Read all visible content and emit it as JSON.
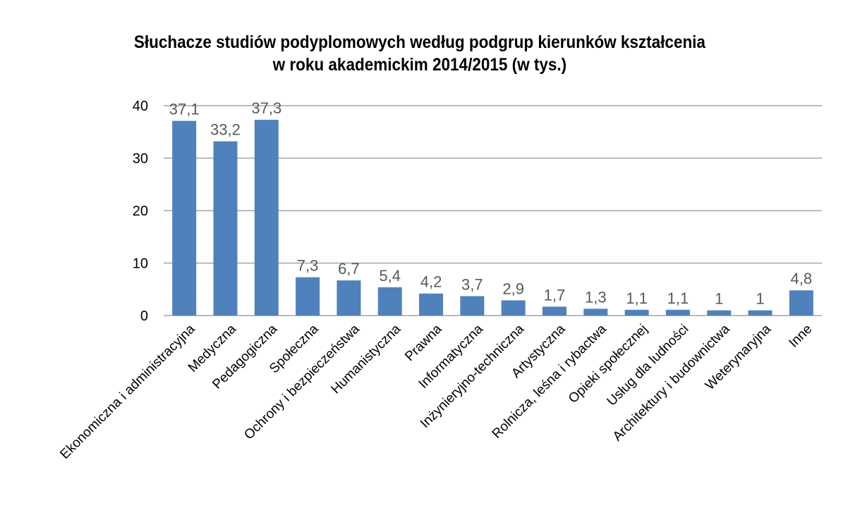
{
  "chart_data": {
    "type": "bar",
    "title": [
      "Słuchacze studiów podyplomowych według podgrup kierunków kształcenia",
      "w roku akademickim 2014/2015 (w tys.)"
    ],
    "categories": [
      "Ekonomiczna i administracyjna",
      "Medyczna",
      "Pedagogiczna",
      "Społeczna",
      "Ochrony i bezpieczeństwa",
      "Humanistyczna",
      "Prawna",
      "Informatyczna",
      "Inżynieryjno-techniczna",
      "Artystyczna",
      "Rolnicza, leśna i rybactwa",
      "Opieki społecznej",
      "Usług dla ludności",
      "Architektury i budownictwa",
      "Weterynaryjna",
      "Inne"
    ],
    "values": [
      37.1,
      33.2,
      37.3,
      7.3,
      6.7,
      5.4,
      4.2,
      3.7,
      2.9,
      1.7,
      1.3,
      1.1,
      1.1,
      1,
      1,
      4.8
    ],
    "value_labels": [
      "37,1",
      "33,2",
      "37,3",
      "7,3",
      "6,7",
      "5,4",
      "4,2",
      "3,7",
      "2,9",
      "1,7",
      "1,3",
      "1,1",
      "1,1",
      "1",
      "1",
      "4,8"
    ],
    "yticks": [
      0,
      10,
      20,
      30,
      40
    ],
    "ylim": [
      0,
      40
    ],
    "xlabel": "",
    "ylabel": "",
    "grid": true,
    "legend": "none",
    "colors": {
      "bar": "#4F81BD",
      "grid": "#A6A6A6",
      "value_label": "#595959"
    }
  }
}
